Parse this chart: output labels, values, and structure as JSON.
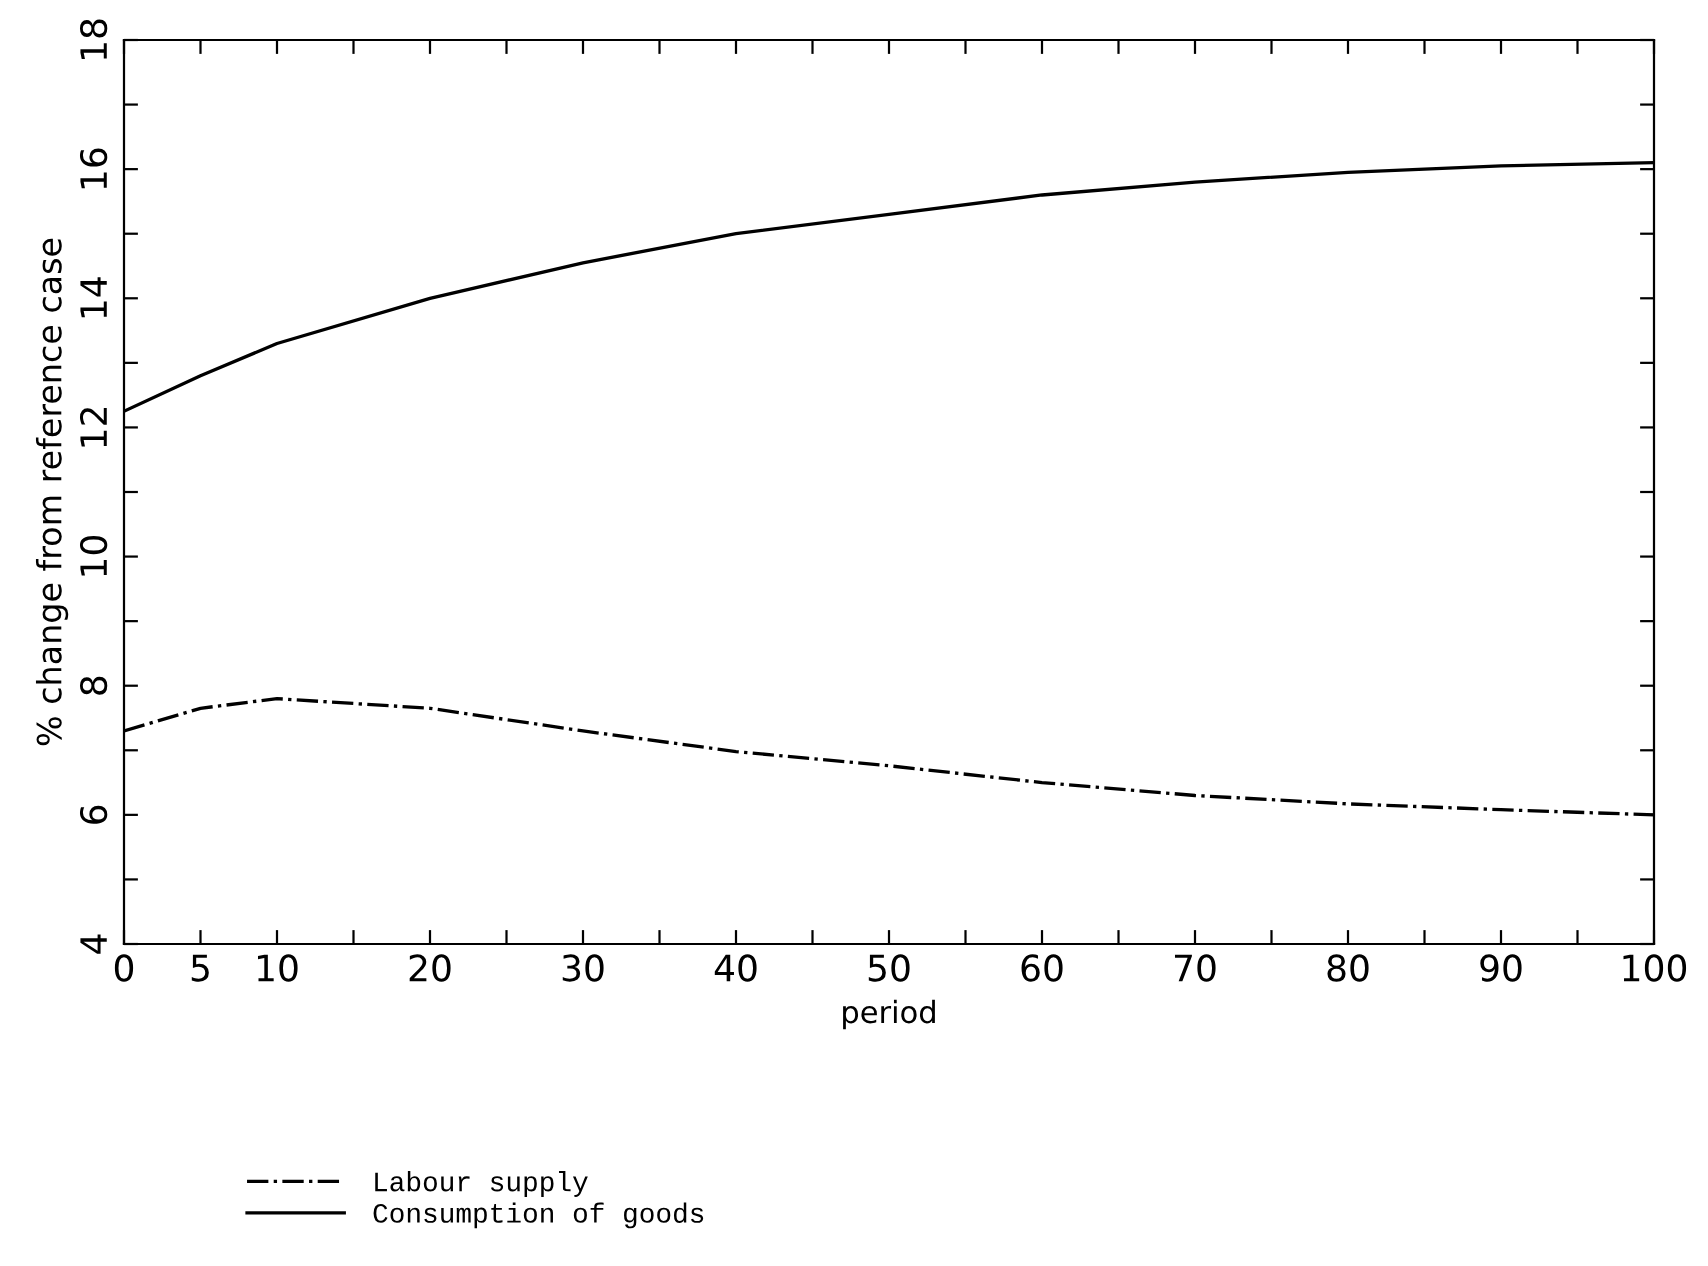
{
  "chart_data": {
    "type": "line",
    "xlabel": "period",
    "ylabel": "% change from reference case",
    "x": [
      0,
      5,
      10,
      20,
      30,
      40,
      50,
      60,
      70,
      80,
      90,
      100
    ],
    "series": [
      {
        "name": "Labour supply",
        "color": "#000000",
        "line_style": "dashdot",
        "values": [
          7.3,
          7.65,
          7.8,
          7.65,
          7.3,
          6.98,
          6.76,
          6.5,
          6.3,
          6.17,
          6.08,
          6.0
        ]
      },
      {
        "name": "Consumption of goods",
        "color": "#000000",
        "line_style": "solid",
        "values": [
          12.25,
          12.8,
          13.3,
          14.0,
          14.55,
          15.0,
          15.3,
          15.6,
          15.8,
          15.95,
          16.05,
          16.1
        ]
      }
    ],
    "xlim": [
      0,
      100
    ],
    "ylim": [
      4,
      18
    ],
    "xticks": [
      0,
      5,
      10,
      {
        "value": 15,
        "label": null
      },
      20,
      {
        "value": 25,
        "label": null
      },
      30,
      {
        "value": 35,
        "label": null
      },
      40,
      {
        "value": 45,
        "label": null
      },
      50,
      {
        "value": 55,
        "label": null
      },
      60,
      {
        "value": 65,
        "label": null
      },
      70,
      {
        "value": 75,
        "label": null
      },
      80,
      {
        "value": 85,
        "label": null
      },
      90,
      {
        "value": 95,
        "label": null
      },
      100
    ],
    "yticks": [
      4,
      {
        "value": 5,
        "label": null
      },
      6,
      {
        "value": 7,
        "label": null
      },
      8,
      {
        "value": 9,
        "label": null
      },
      10,
      {
        "value": 11,
        "label": null
      },
      12,
      {
        "value": 13,
        "label": null
      },
      14,
      {
        "value": 15,
        "label": null
      },
      16,
      {
        "value": 17,
        "label": null
      },
      18
    ],
    "grid": false,
    "legend": "bottom left"
  }
}
